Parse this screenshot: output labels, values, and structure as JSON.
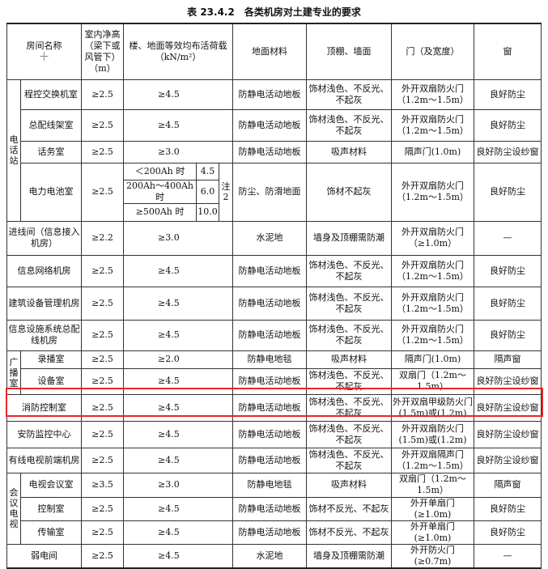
{
  "title": "表 23.4.2　各类机房对土建专业的要求",
  "header": {
    "name": "房间名称",
    "height": "室内净高（梁下或风管下）（m）",
    "load": "楼、地面等效均布活荷载（kN/m²）",
    "floor": "地面材料",
    "wall": "顶棚、墙面",
    "door": "门（及宽度）",
    "window": "窗",
    "plus_icon": "plus-icon"
  },
  "groups": [
    {
      "label": "电话站",
      "rows": [
        {
          "name": "程控交换机室",
          "height": "≥2.5",
          "load": "≥4.5",
          "floor": "防静电活动地板",
          "wall": "饰材浅色、不反光、不起灰",
          "door": "外开双扇防火门（1.2m～1.5m）",
          "window": "良好防尘"
        },
        {
          "name": "总配线架室",
          "height": "≥2.5",
          "load": "≥4.5",
          "floor": "防静电活动地板",
          "wall": "饰材浅色、不反光、不起灰",
          "door": "外开双扇防火门（1.2m～1.5m）",
          "window": "良好防尘"
        },
        {
          "name": "话务室",
          "height": "≥2.5",
          "load": "≥3.0",
          "floor": "防静电活动地板",
          "wall": "吸声材料",
          "door": "隔声门(1.0m)",
          "window": "良好防尘设纱窗"
        },
        {
          "name": "电力电池室",
          "height": "≥2.5",
          "sub_loads": [
            {
              "cond": "＜200Ah 时",
              "value": "4.5"
            },
            {
              "cond": "200Ah～400Ah时",
              "value": "6.0"
            },
            {
              "cond": "≥500Ah 时",
              "value": "10.0"
            }
          ],
          "note": "注2",
          "floor": "防尘、防滑地面",
          "wall": "饰材不起灰",
          "door": "外开双扇防火门（1.2m～1.5m）",
          "window": "良好防尘"
        }
      ]
    },
    {
      "label": "",
      "rows": [
        {
          "name": "进线间（信息接入机房）",
          "height": "≥2.2",
          "load": "≥3.0",
          "floor": "水泥地",
          "wall": "墙身及顶棚需防潮",
          "door": "外开双扇防火门（≥1.0m）",
          "window": "—"
        },
        {
          "name": "信息网络机房",
          "height": "≥2.5",
          "load": "≥4.5",
          "floor": "防静电活动地板",
          "wall": "饰材浅色、不反光、不起灰",
          "door": "外开双扇防火门（1.2m～1.5m）",
          "window": "良好防尘"
        },
        {
          "name": "建筑设备管理机房",
          "height": "≥2.5",
          "load": "≥4.5",
          "floor": "防静电活动地板",
          "wall": "饰材浅色、不反光、不起灰",
          "door": "外开双扇防火门（1.2m～1.5m）",
          "window": "良好防尘"
        },
        {
          "name": "信息设施系统总配线机房",
          "height": "≥2.5",
          "load": "≥4.5",
          "floor": "防静电活动地板",
          "wall": "饰材浅色、不反光、不起灰",
          "door": "外开双扇防火门（1.2m～1.5m）",
          "window": "良好防尘"
        }
      ]
    },
    {
      "label": "广播室",
      "rows": [
        {
          "name": "录播室",
          "height": "≥2.5",
          "load": "≥2.0",
          "floor": "防静电地毯",
          "wall": "吸声材料",
          "door": "隔声门(1.0m)",
          "window": "隔声窗"
        },
        {
          "name": "设备室",
          "height": "≥2.5",
          "load": "≥4.5",
          "floor": "防静电活动地板",
          "wall": "饰材浅色、不反光、不起灰",
          "door": "双扇门（1.2m～1.5m）",
          "window": "良好防尘设纱窗"
        }
      ]
    },
    {
      "label": "",
      "rows": [
        {
          "name": "消防控制室",
          "height": "≥2.5",
          "load": "≥4.5",
          "floor": "防静电活动地板",
          "wall": "饰材浅色、不反光、不起灰",
          "door": "外开双扇甲级防火门(1.5m)或(1.2m)",
          "window": "良好防尘设纱窗",
          "highlighted": true
        },
        {
          "name": "安防监控中心",
          "height": "≥2.5",
          "load": "≥4.5",
          "floor": "防静电活动地板",
          "wall": "饰材浅色、不反光、不起灰",
          "door": "外开双扇防火门(1.5m)或(1.2m)",
          "window": "良好防尘设纱窗"
        },
        {
          "name": "有线电视前端机房",
          "height": "≥2.5",
          "load": "≥4.5",
          "floor": "防静电活动地板",
          "wall": "饰材浅色、不反光、不起灰",
          "door": "外开双扇隔声门（1.2m～1.5m）",
          "window": "良好防尘设纱窗"
        }
      ]
    },
    {
      "label": "会议电视",
      "rows": [
        {
          "name": "电视会议室",
          "height": "≥3.5",
          "load": "≥3.0",
          "floor": "防静电地毯",
          "wall": "吸声材料",
          "door": "双扇门（1.2m～1.5m）",
          "window": "隔声窗"
        },
        {
          "name": "控制室",
          "height": "≥2.5",
          "load": "≥4.5",
          "floor": "防静电活动地板",
          "wall": "饰材不反光、不起灰",
          "door": "外开单扇门(≥1.0m)",
          "window": "良好防尘"
        },
        {
          "name": "传输室",
          "height": "≥2.5",
          "load": "≥4.5",
          "floor": "防静电活动地板",
          "wall": "饰材不反光、不起灰",
          "door": "外开单扇门(≥1.0m)",
          "window": "良好防尘"
        }
      ]
    },
    {
      "label": "",
      "rows": [
        {
          "name": "弱电间",
          "height": "≥2.5",
          "load": "≥4.5",
          "floor": "水泥地",
          "wall": "墙身及顶棚需防潮",
          "door": "外开防火门(≥0.7m)",
          "window": "—"
        }
      ]
    }
  ],
  "colors": {
    "highlight": "#e8262a"
  }
}
